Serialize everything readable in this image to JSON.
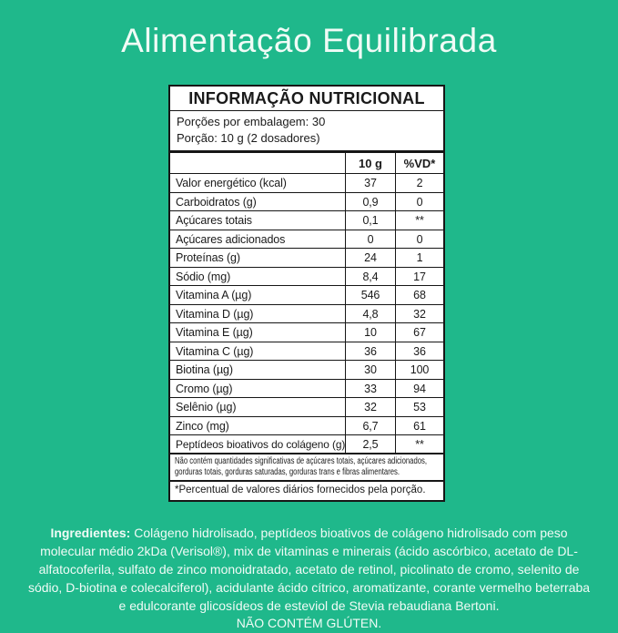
{
  "colors": {
    "background": "#1fb88b",
    "light_text": "#f0fbf6",
    "label_background": "#ffffff",
    "label_text": "#1a1a1a",
    "label_border": "#161616"
  },
  "header": {
    "title": "Alimentação Equilibrada"
  },
  "label": {
    "title": "INFORMAÇÃO NUTRICIONAL",
    "servings_per_pack": "Porções por embalagem: 30",
    "serving_size": "Porção: 10 g (2 dosadores)",
    "columns": [
      "10 g",
      "%VD*"
    ],
    "rows": [
      {
        "name": "Valor energético (kcal)",
        "amount": "37",
        "dv": "2"
      },
      {
        "name": "Carboidratos (g)",
        "amount": "0,9",
        "dv": "0"
      },
      {
        "name": "Açúcares totais",
        "amount": "0,1",
        "dv": "**"
      },
      {
        "name": "Açúcares adicionados",
        "amount": "0",
        "dv": "0"
      },
      {
        "name": "Proteínas (g)",
        "amount": "24",
        "dv": "1"
      },
      {
        "name": "Sódio (mg)",
        "amount": "8,4",
        "dv": "17"
      },
      {
        "name": "Vitamina A (µg)",
        "amount": "546",
        "dv": "68"
      },
      {
        "name": "Vitamina D (µg)",
        "amount": "4,8",
        "dv": "32"
      },
      {
        "name": "Vitamina E (µg)",
        "amount": "10",
        "dv": "67"
      },
      {
        "name": "Vitamina C (µg)",
        "amount": "36",
        "dv": "36"
      },
      {
        "name": "Biotina (µg)",
        "amount": "30",
        "dv": "100"
      },
      {
        "name": "Cromo (µg)",
        "amount": "33",
        "dv": "94"
      },
      {
        "name": "Selênio (µg)",
        "amount": "32",
        "dv": "53"
      },
      {
        "name": "Zinco (mg)",
        "amount": "6,7",
        "dv": "61"
      },
      {
        "name": "Peptídeos bioativos do colágeno (g)",
        "amount": "2,5",
        "dv": "**"
      }
    ],
    "note_significant": "Não contém quantidades significativas de açúcares totais, açúcares adicionados, gorduras totais, gorduras saturadas, gorduras trans e fibras alimentares.",
    "note_dv": "*Percentual de valores diários fornecidos pela porção."
  },
  "ingredients": {
    "label": "Ingredientes:",
    "text": "Colágeno hidrolisado, peptídeos bioativos de colágeno hidrolisado com peso molecular médio 2kDa (Verisol®), mix de vitaminas e minerais (ácido ascórbico, acetato de DL-alfatocoferila, sulfato de zinco monoidratado, acetato de retinol, picolinato de cromo, selenito de sódio, D-biotina e colecalciferol), acidulante ácido cítrico, aromatizante, corante vermelho beterraba e edulcorante glicosídeos de esteviol de Stevia rebaudiana Bertoni.",
    "gluten_notice": "NÃO CONTÉM GLÚTEN."
  }
}
